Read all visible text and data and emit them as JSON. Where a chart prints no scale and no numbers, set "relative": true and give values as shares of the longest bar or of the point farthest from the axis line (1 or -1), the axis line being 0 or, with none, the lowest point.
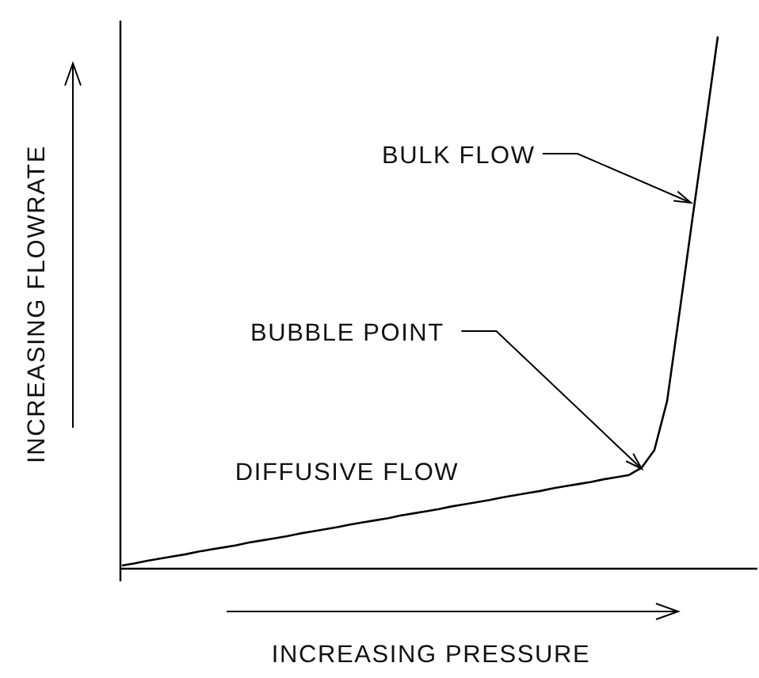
{
  "chart_data": {
    "type": "line",
    "relative": true,
    "xlabel": "INCREASING PRESSURE",
    "ylabel": "INCREASING FLOWRATE",
    "categories": [
      null,
      null,
      null,
      null,
      null,
      null,
      null,
      null,
      null,
      null,
      null,
      null,
      null,
      null,
      null,
      null,
      null,
      null,
      null,
      null,
      null,
      null,
      null,
      null,
      null,
      null,
      null,
      null,
      null,
      null,
      null,
      null,
      null,
      null,
      null,
      null,
      null,
      null,
      null,
      null,
      null,
      null,
      null,
      null,
      null,
      null,
      null,
      null
    ],
    "series": [
      {
        "color": "#000000",
        "values": [
          0.006,
          0.01,
          0.015,
          0.019,
          0.023,
          0.027,
          0.032,
          0.036,
          0.04,
          0.044,
          0.049,
          0.053,
          0.057,
          0.061,
          0.066,
          0.07,
          0.074,
          0.078,
          0.083,
          0.087,
          0.091,
          0.095,
          0.1,
          0.104,
          0.108,
          0.112,
          0.117,
          0.121,
          0.125,
          0.129,
          0.134,
          0.138,
          0.142,
          0.146,
          0.151,
          0.155,
          0.159,
          0.163,
          0.168,
          0.172,
          0.176,
          0.19,
          0.223,
          0.315,
          0.485,
          0.658,
          0.827,
          1
        ]
      }
    ],
    "annotations": [
      "DIFFUSIVE FLOW",
      "BUBBLE POINT",
      "BULK FLOW"
    ],
    "line_style": "solid"
  }
}
